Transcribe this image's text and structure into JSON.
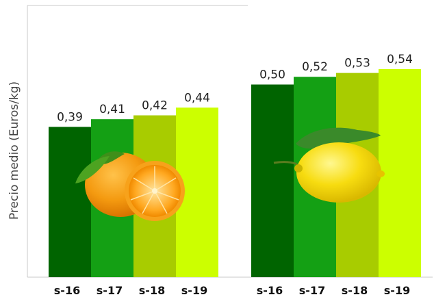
{
  "chart_data": {
    "type": "bar",
    "ylabel": "Precio medio (Euros/kg)",
    "ylim": [
      0,
      0.6
    ],
    "grid": false,
    "legend": "none",
    "groups": [
      {
        "fruit_icon": "orange-icon",
        "categories": [
          "s-16",
          "s-17",
          "s-18",
          "s-19"
        ],
        "values": [
          0.39,
          0.41,
          0.42,
          0.44
        ],
        "labels": [
          "0,39",
          "0,41",
          "0,42",
          "0,44"
        ]
      },
      {
        "fruit_icon": "lemon-icon",
        "categories": [
          "s-16",
          "s-17",
          "s-18",
          "s-19"
        ],
        "values": [
          0.5,
          0.52,
          0.53,
          0.54
        ],
        "labels": [
          "0,50",
          "0,52",
          "0,53",
          "0,54"
        ]
      }
    ],
    "colors": [
      "#006400",
      "#14a014",
      "#a8cc00",
      "#ccff00"
    ]
  }
}
